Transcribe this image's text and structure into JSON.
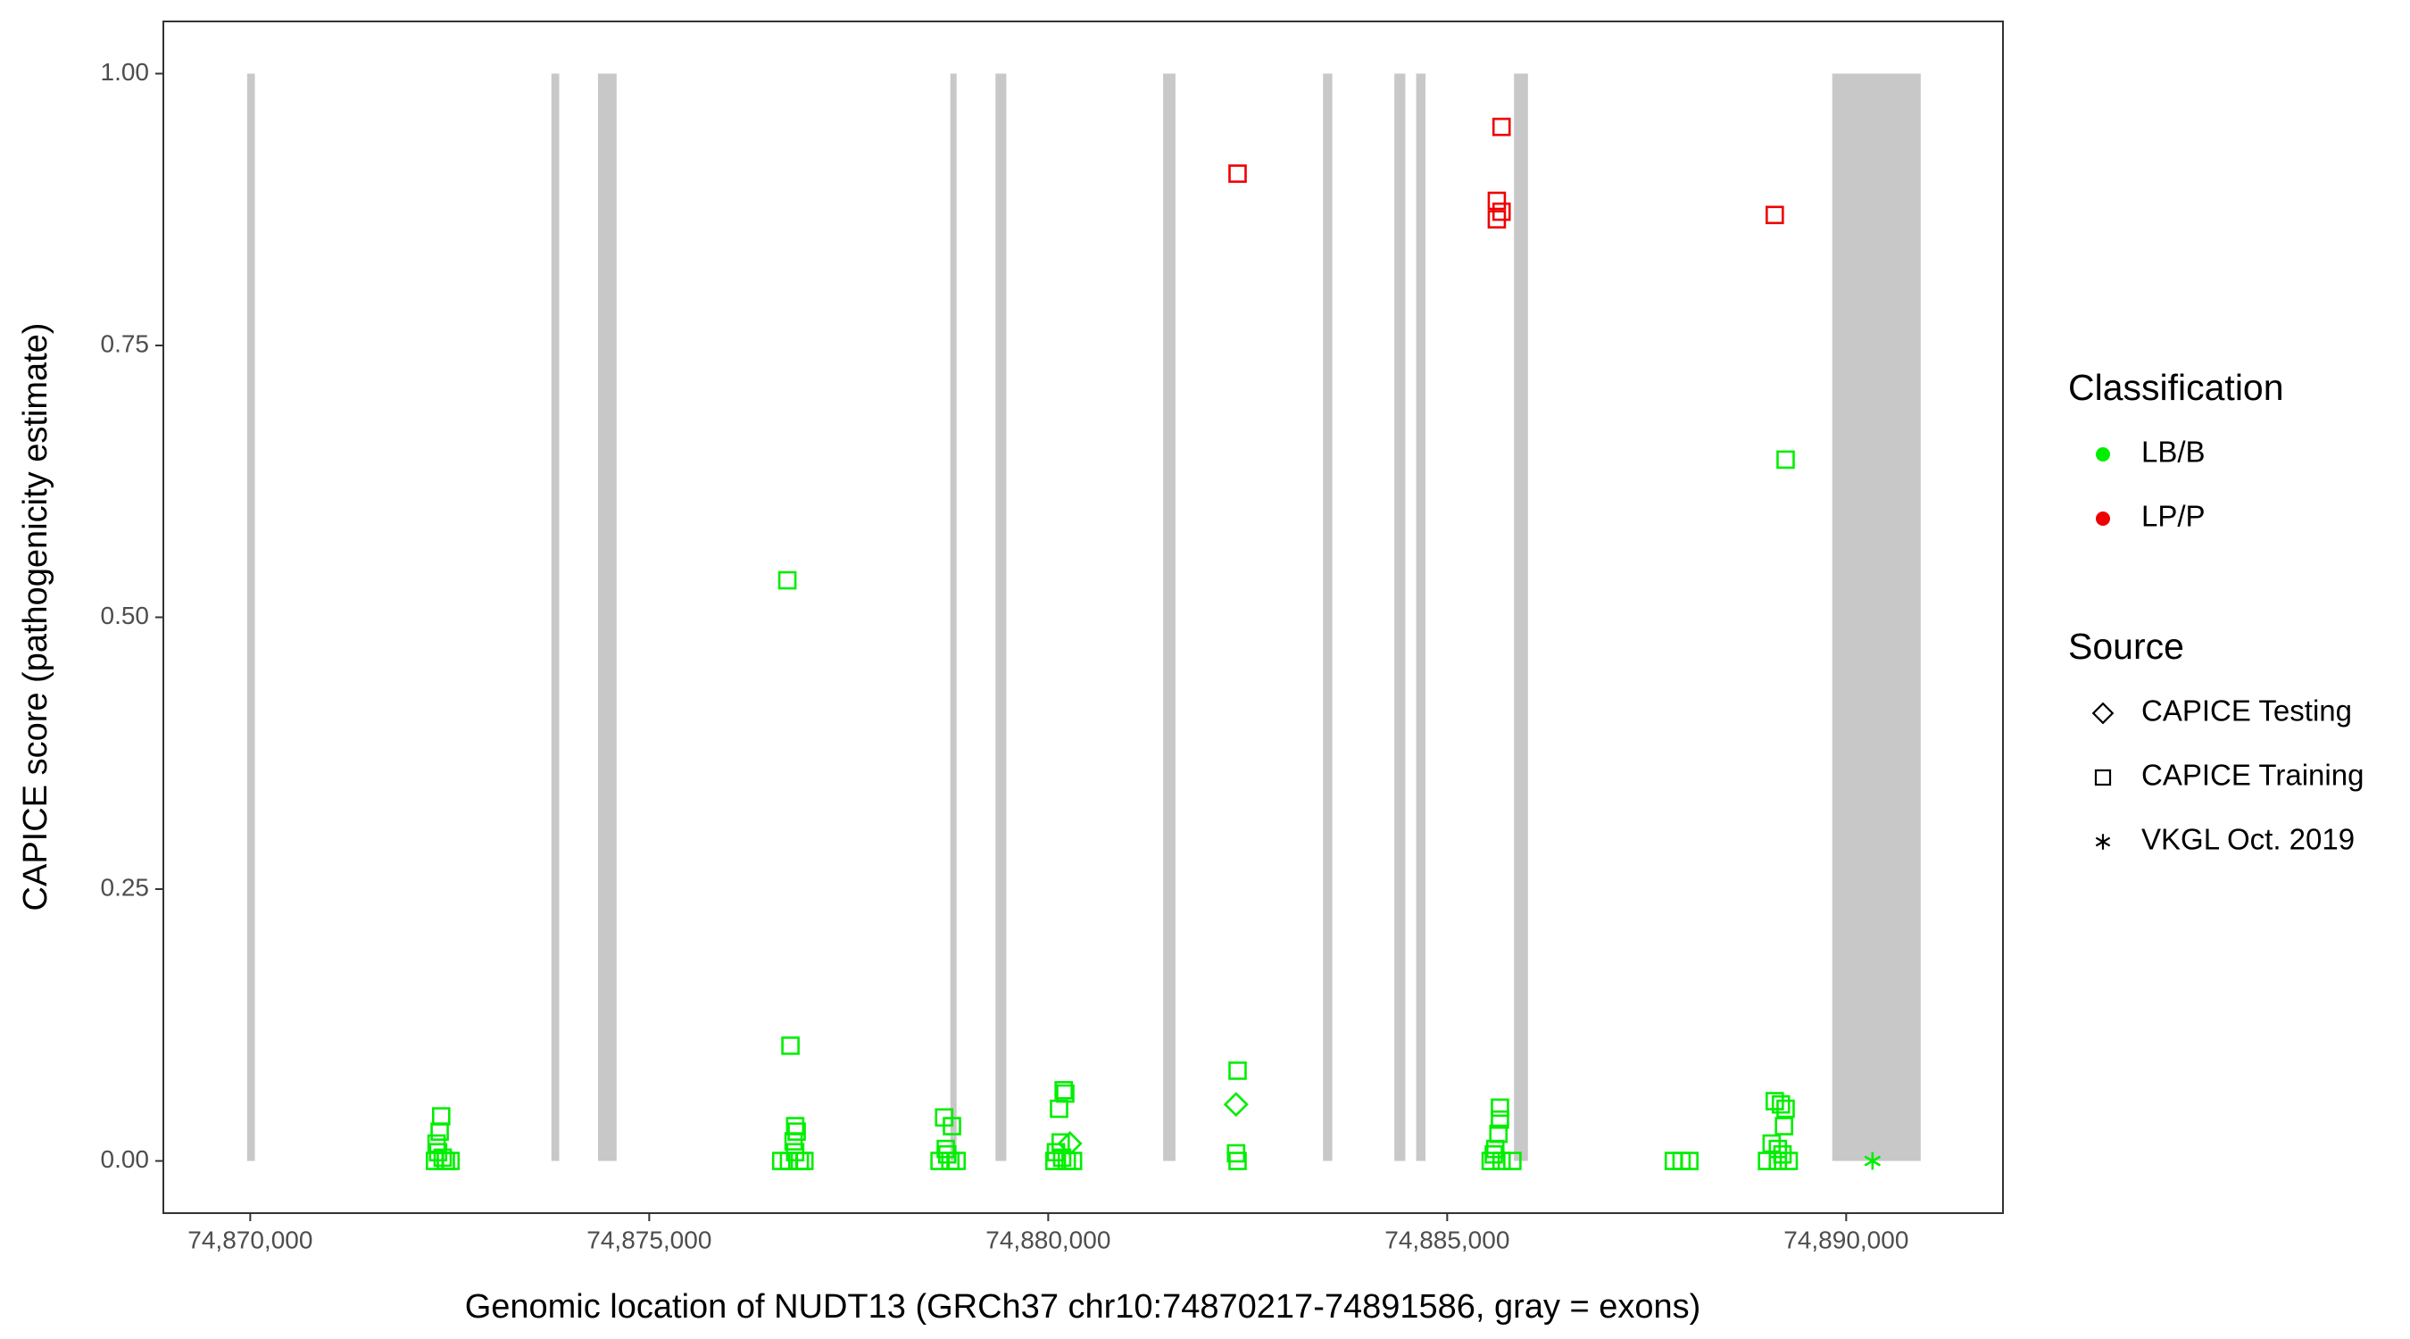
{
  "chart_data": {
    "type": "scatter",
    "xlabel": "Genomic location of NUDT13 (GRCh37 chr10:74870217-74891586, gray = exons)",
    "ylabel": "CAPICE score (pathogenicity estimate)",
    "xlim": [
      74868911,
      74891965
    ],
    "ylim": [
      -0.048,
      1.048
    ],
    "xticks": [
      {
        "value": 74870000,
        "label": "74,870,000"
      },
      {
        "value": 74875000,
        "label": "74,875,000"
      },
      {
        "value": 74880000,
        "label": "74,880,000"
      },
      {
        "value": 74885000,
        "label": "74,885,000"
      },
      {
        "value": 74890000,
        "label": "74,890,000"
      }
    ],
    "yticks": [
      {
        "value": 0,
        "label": "0.00"
      },
      {
        "value": 0.25,
        "label": "0.25"
      },
      {
        "value": 0.5,
        "label": "0.50"
      },
      {
        "value": 0.75,
        "label": "0.75"
      },
      {
        "value": 1,
        "label": "1.00"
      }
    ],
    "grid": false,
    "exon_color": "#c8c8c8",
    "exons": [
      [
        74869961,
        74870058
      ],
      [
        74873774,
        74873872
      ],
      [
        74874358,
        74874591
      ],
      [
        74878774,
        74878852
      ],
      [
        74879339,
        74879475
      ],
      [
        74881440,
        74881595
      ],
      [
        74883444,
        74883560
      ],
      [
        74884338,
        74884475
      ],
      [
        74884611,
        74884728
      ],
      [
        74885837,
        74886012
      ],
      [
        74889825,
        74890934
      ]
    ],
    "series": [
      {
        "color": "#00ee00",
        "marker": "square",
        "x": [
          74872393,
          74872374,
          74872335,
          74872354,
          74872412,
          74872315,
          74872451,
          74872510,
          74876731,
          74876770,
          74876829,
          74876848,
          74876809,
          74876829,
          74876654,
          74876751,
          74876887,
          74876945,
          74878696,
          74878794,
          74878716,
          74878735,
          74878638,
          74878774,
          74878852,
          74880194,
          74880214,
          74880136,
          74880156,
          74880097,
          74880175,
          74880078,
          74880233,
          74880311,
          74882373,
          74882354,
          74882373,
          74885661,
          74885661,
          74885642,
          74885603,
          74885584,
          74885545,
          74885681,
          74885817,
          74887840,
          74887937,
          74888035,
          74889105,
          74889182,
          74889241,
          74889221,
          74889066,
          74889144,
          74889202,
          74889008,
          74889144,
          74889280,
          74889241
        ],
        "y": [
          0.041,
          0.027,
          0.016,
          0.008,
          0.003,
          0,
          0,
          0,
          0.534,
          0.106,
          0.032,
          0.027,
          0.018,
          0.008,
          0,
          0,
          0,
          0,
          0.04,
          0.032,
          0.011,
          0.006,
          0,
          0,
          0,
          0.065,
          0.062,
          0.048,
          0.017,
          0.008,
          0.003,
          0,
          0,
          0,
          0.083,
          0.007,
          0,
          0.049,
          0.038,
          0.025,
          0.011,
          0.006,
          0,
          0,
          0,
          0,
          0,
          0,
          0.055,
          0.052,
          0.048,
          0.032,
          0.016,
          0.011,
          0.006,
          0,
          0,
          0,
          0.645
        ]
      },
      {
        "color": "#00ee00",
        "marker": "diamond",
        "x": [
          74882354,
          74880272
        ],
        "y": [
          0.052,
          0.016
        ]
      },
      {
        "color": "#ee0000",
        "marker": "square",
        "x": [
          74882373,
          74885681,
          74885622,
          74885681,
          74885622,
          74889105
        ],
        "y": [
          0.908,
          0.951,
          0.883,
          0.873,
          0.866,
          0.87
        ]
      },
      {
        "color": "#00ee00",
        "marker": "asterisk",
        "x": [
          74890330
        ],
        "y": [
          0
        ]
      }
    ],
    "legends": [
      {
        "title": "Classification",
        "items": [
          {
            "name": "LB/B",
            "color": "#00ee00"
          },
          {
            "name": "LP/P",
            "color": "#ee0000"
          }
        ]
      },
      {
        "title": "Source",
        "items": [
          {
            "name": "CAPICE Testing",
            "marker": "diamond"
          },
          {
            "name": "CAPICE Training",
            "marker": "square"
          },
          {
            "name": "VKGL Oct. 2019",
            "marker": "asterisk"
          }
        ]
      }
    ]
  }
}
